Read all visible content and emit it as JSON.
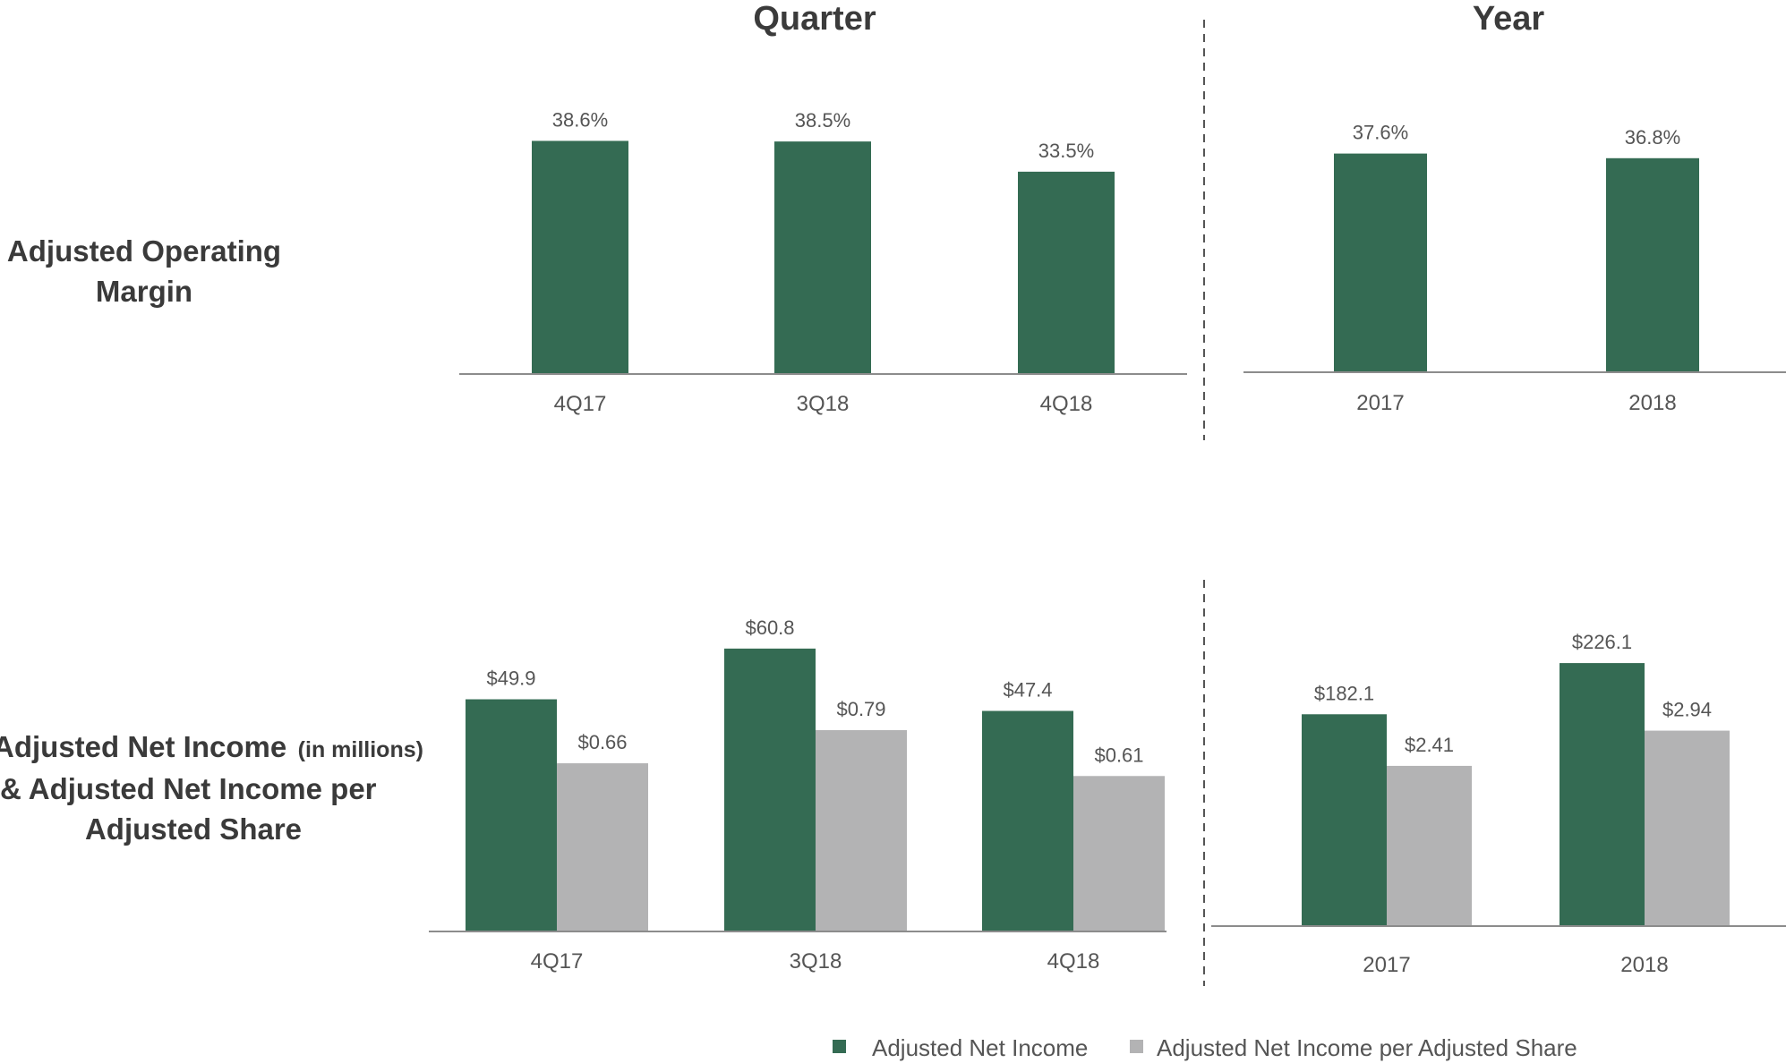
{
  "headers": {
    "quarter": "Quarter",
    "year": "Year"
  },
  "row_labels": {
    "margin": [
      "Adjusted Operating",
      "Margin"
    ],
    "net_income_line1": "Adjusted Net Income",
    "net_income_line1_small": "(in millions)",
    "net_income_line2": "& Adjusted Net Income per",
    "net_income_line3": "Adjusted Share"
  },
  "legend": {
    "items": [
      {
        "label": "Adjusted Net Income",
        "color": "#346b53"
      },
      {
        "label": "Adjusted Net Income per Adjusted Share",
        "color": "#b3b3b4"
      }
    ]
  },
  "colors": {
    "green": "#346b53",
    "gray": "#b3b3b4",
    "axis": "#8c8c8c",
    "divider": "#555555"
  },
  "chart_data": [
    {
      "id": "margin_quarter",
      "type": "bar",
      "categories": [
        "4Q17",
        "3Q18",
        "4Q18"
      ],
      "series": [
        {
          "values": [
            38.6,
            38.5,
            33.5
          ],
          "labels": [
            "38.6%",
            "38.5%",
            "33.5%"
          ],
          "color": "#346b53"
        }
      ]
    },
    {
      "id": "margin_year",
      "type": "bar",
      "categories": [
        "2017",
        "2018"
      ],
      "series": [
        {
          "values": [
            37.6,
            36.8
          ],
          "labels": [
            "37.6%",
            "36.8%"
          ],
          "color": "#346b53"
        }
      ]
    },
    {
      "id": "net_income_quarter",
      "type": "bar",
      "categories": [
        "4Q17",
        "3Q18",
        "4Q18"
      ],
      "series": [
        {
          "name": "Adjusted Net Income",
          "values": [
            49.9,
            60.8,
            47.4
          ],
          "labels": [
            "$49.9",
            "$60.8",
            "$47.4"
          ],
          "color": "#346b53"
        },
        {
          "name": "Adjusted Net Income per Adjusted Share",
          "values": [
            0.66,
            0.79,
            0.61
          ],
          "labels": [
            "$0.66",
            "$0.79",
            "$0.61"
          ],
          "color": "#b3b3b4"
        }
      ]
    },
    {
      "id": "net_income_year",
      "type": "bar",
      "categories": [
        "2017",
        "2018"
      ],
      "series": [
        {
          "name": "Adjusted Net Income",
          "values": [
            182.1,
            226.1
          ],
          "labels": [
            "$182.1",
            "$226.1"
          ],
          "color": "#346b53"
        },
        {
          "name": "Adjusted Net Income per Adjusted Share",
          "values": [
            2.41,
            2.94
          ],
          "labels": [
            "$2.41",
            "$2.94"
          ],
          "color": "#b3b3b4"
        }
      ]
    }
  ]
}
